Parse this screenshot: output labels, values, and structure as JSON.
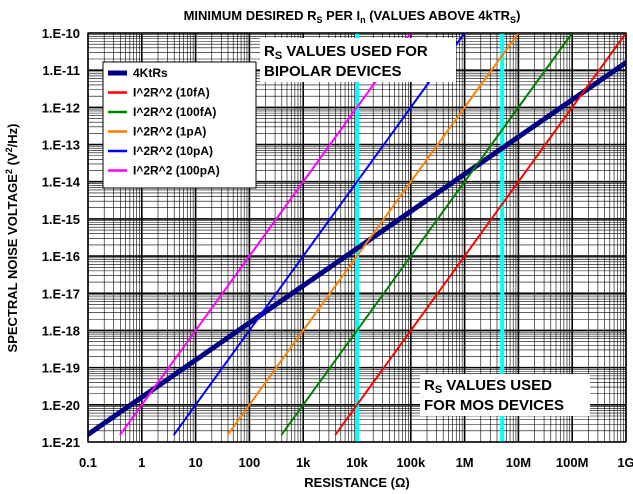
{
  "chart_data": {
    "type": "line",
    "title_main": "MINIMUM DESIRED R",
    "title_sub1": "S",
    "title_mid": " PER I",
    "title_sub2": "n",
    "title_end1": " (VALUES ABOVE  4kTR",
    "title_sub3": "S",
    "title_end2": ")",
    "xlabel_main": "RESISTANCE (",
    "xlabel_unit": "Ω",
    "xlabel_end": ")",
    "ylabel_main": "SPECTRAL NOISE VOLTAGE",
    "ylabel_sup": "2",
    "ylabel_end": " (V",
    "ylabel_sup2": "2",
    "ylabel_end2": "/Hz)",
    "x_scale": "log",
    "y_scale": "log",
    "xlim": [
      0.1,
      1000000000
    ],
    "ylim": [
      1e-21,
      1e-10
    ],
    "x_tick_labels": [
      "0.1",
      "1",
      "10",
      "100",
      "1k",
      "10k",
      "100k",
      "1M",
      "10M",
      "100M",
      "1G"
    ],
    "y_tick_labels": [
      "1.E-21",
      "1.E-20",
      "1.E-19",
      "1.E-18",
      "1.E-17",
      "1.E-16",
      "1.E-15",
      "1.E-14",
      "1.E-13",
      "1.E-12",
      "1.E-11",
      "1.E-10"
    ],
    "grid": true,
    "legend_position": "top-left",
    "series": [
      {
        "name": "4KtRs",
        "color": "#000080",
        "x": [
          0.1,
          1000000000
        ],
        "y": [
          1.6e-21,
          1.6e-11
        ]
      },
      {
        "name": "I^2R^2 (10fA)",
        "color": "#ff0000",
        "x": [
          4000,
          1000000000
        ],
        "y": [
          1.6e-21,
          1e-10
        ]
      },
      {
        "name": "I^2R^2 (100fA)",
        "color": "#008000",
        "x": [
          400,
          100000000
        ],
        "y": [
          1.6e-21,
          1e-10
        ]
      },
      {
        "name": "I^2R^2 (1pA)",
        "color": "#ff8000",
        "x": [
          40,
          10000000
        ],
        "y": [
          1.6e-21,
          1e-10
        ]
      },
      {
        "name": "I^2R^2 (10pA)",
        "color": "#0000ff",
        "x": [
          4,
          1000000
        ],
        "y": [
          1.6e-21,
          1e-10
        ]
      },
      {
        "name": "I^2R^2 (100pA)",
        "color": "#ff00ff",
        "x": [
          0.4,
          100000
        ],
        "y": [
          1.6e-21,
          1e-10
        ]
      }
    ],
    "vlines": [
      {
        "x": 10000,
        "color": "#00ffff"
      },
      {
        "x": 5000000,
        "color": "#00ffff"
      }
    ],
    "annotations": [
      {
        "main": "R",
        "sub": "S",
        "rest": " VALUES USED FOR",
        "line2": "BIPOLAR DEVICES"
      },
      {
        "main": "R",
        "sub": "S",
        "rest": " VALUES USED",
        "line2": "FOR MOS DEVICES"
      }
    ]
  }
}
